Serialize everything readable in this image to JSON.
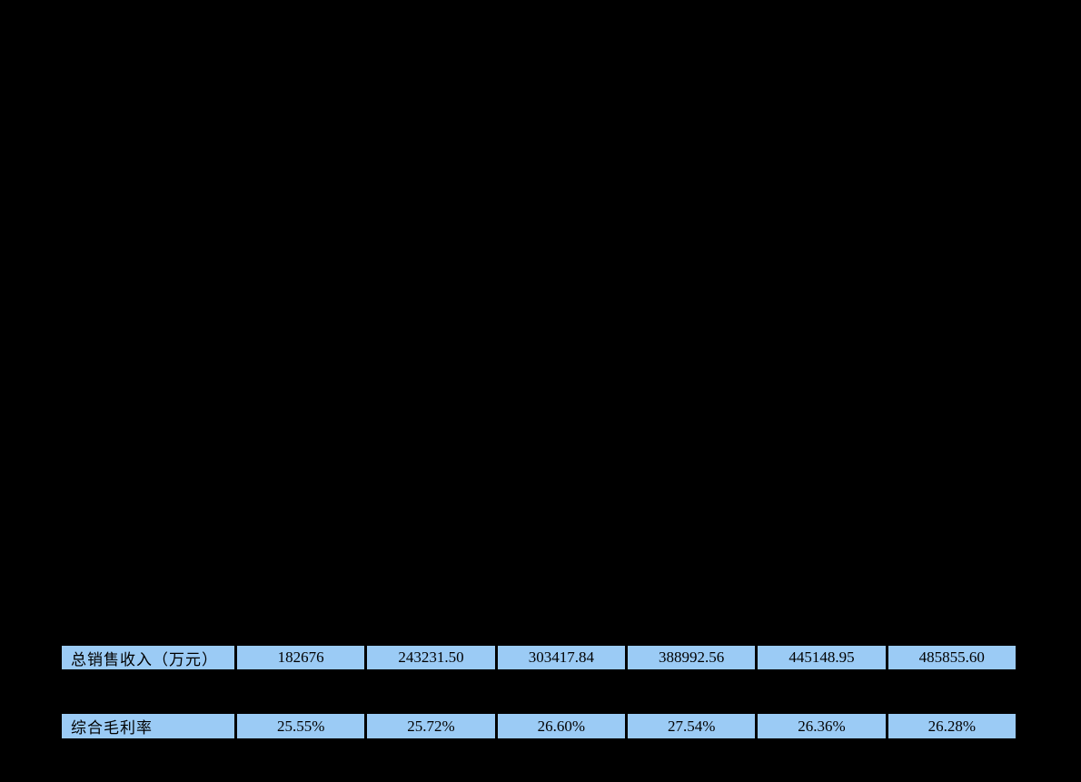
{
  "page": {
    "background_color": "#000000",
    "cell_fill_color": "#9BCBF5",
    "cell_text_color": "#000000"
  },
  "table": {
    "rows": [
      {
        "label": "总销售收入（万元）",
        "values": [
          "182676",
          "243231.50",
          "303417.84",
          "388992.56",
          "445148.95",
          "485855.60"
        ]
      },
      {
        "label": "综合毛利率",
        "values": [
          "25.55%",
          "25.72%",
          "26.60%",
          "27.54%",
          "26.36%",
          "26.28%"
        ]
      }
    ]
  }
}
